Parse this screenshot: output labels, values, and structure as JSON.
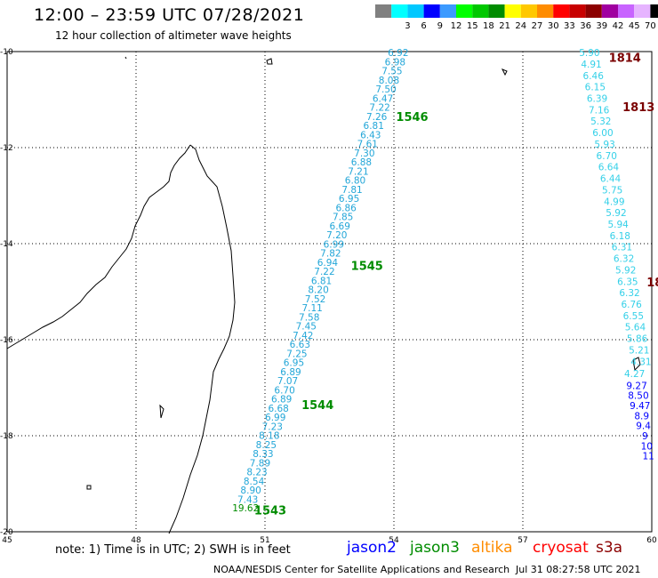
{
  "title": "12:00 – 23:59 UTC 07/28/2021",
  "subtitle": "12 hour collection of altimeter wave heights",
  "legend": {
    "unit": "(ft)",
    "bins": [
      {
        "label": "",
        "color": "#808080"
      },
      {
        "label": "3",
        "color": "#00ffff"
      },
      {
        "label": "6",
        "color": "#00c8ff"
      },
      {
        "label": "9",
        "color": "#0000ff"
      },
      {
        "label": "12",
        "color": "#3c9aff"
      },
      {
        "label": "15",
        "color": "#00ff00"
      },
      {
        "label": "18",
        "color": "#00c800"
      },
      {
        "label": "21",
        "color": "#008c00"
      },
      {
        "label": "24",
        "color": "#ffff00"
      },
      {
        "label": "27",
        "color": "#ffc800"
      },
      {
        "label": "30",
        "color": "#ff8c00"
      },
      {
        "label": "33",
        "color": "#ff0000"
      },
      {
        "label": "36",
        "color": "#c80000"
      },
      {
        "label": "39",
        "color": "#8c0000"
      },
      {
        "label": "42",
        "color": "#a000a0"
      },
      {
        "label": "45",
        "color": "#c864ff"
      },
      {
        "label": "70",
        "color": "#e6b4ff"
      },
      {
        "label": "",
        "color": "#000000"
      }
    ]
  },
  "axes": {
    "lon_min": 45,
    "lon_max": 60,
    "lat_min": -20,
    "lat_max": -10,
    "x_ticks": [
      "45",
      "48",
      "51",
      "54",
      "57",
      "60"
    ],
    "y_ticks": [
      "-10",
      "-12",
      "-14",
      "-16",
      "-18",
      "-20"
    ],
    "grid": true
  },
  "tracks": [
    {
      "color": "#22a6d8",
      "values": [
        "6.92",
        "6.98",
        "7.55",
        "8.08",
        "7.50",
        "6.47",
        "7.22",
        "7.26",
        "6.81",
        "6.43",
        "7.61",
        "7.30",
        "6.88",
        "7.21",
        "6.80",
        "7.81",
        "6.95",
        "6.86",
        "7.85",
        "6.69",
        "7.20",
        "6.99",
        "7.82",
        "6.94",
        "7.22",
        "6.81",
        "8.20",
        "7.52",
        "7.11",
        "7.58",
        "7.45",
        "7.42",
        "6.63",
        "7.25",
        "6.95",
        "6.89",
        "7.07",
        "6.70",
        "6.89",
        "6.68",
        "6.99",
        "7.23",
        "8.18",
        "8.25",
        "8.33",
        "7.89",
        "8.23",
        "8.54",
        "8.90",
        "7.43"
      ],
      "start": {
        "lon": 54.1,
        "lat": -10.02
      },
      "end": {
        "lon": 50.6,
        "lat": -19.32
      }
    },
    {
      "color": "#34d0e8",
      "values": [
        "5.90",
        "4.91",
        "6.46",
        "6.15",
        "6.39",
        "7.16",
        "5.32",
        "6.00",
        "5.93",
        "6.70",
        "6.64",
        "6.44",
        "5.75",
        "4.99",
        "5.92",
        "5.94",
        "6.18",
        "6.31",
        "6.32",
        "5.92",
        "6.35",
        "6.32",
        "6.76",
        "6.55",
        "5.64",
        "5.86",
        "5.21",
        "4.31"
      ],
      "start": {
        "lon": 58.55,
        "lat": -10.02
      },
      "end": {
        "lon": 59.75,
        "lat": -16.45
      }
    },
    {
      "color": "#0000ff",
      "values": [
        "9.27",
        "8.50",
        "9.47",
        "8.9",
        "9.4",
        "9",
        "10",
        "11"
      ],
      "start": {
        "lon": 59.65,
        "lat": -16.95
      },
      "end": {
        "lon": 59.92,
        "lat": -18.42
      }
    }
  ],
  "extra_values": [
    {
      "text": "19.62",
      "color": "#008c00",
      "lon": 50.55,
      "lat": -19.5
    },
    {
      "text": "4.27",
      "color": "#34d0e8",
      "lon": 59.6,
      "lat": -16.7
    }
  ],
  "pass_labels": [
    {
      "text": "1546",
      "color": "#008c00",
      "lon": 54.05,
      "lat": -11.35
    },
    {
      "text": "1545",
      "color": "#008c00",
      "lon": 53.0,
      "lat": -14.45
    },
    {
      "text": "1544",
      "color": "#008c00",
      "lon": 51.85,
      "lat": -17.35
    },
    {
      "text": "1543",
      "color": "#008c00",
      "lon": 50.75,
      "lat": -19.55
    },
    {
      "text": "1814",
      "color": "#7a0000",
      "lon": 59.0,
      "lat": -10.12
    },
    {
      "text": "1813",
      "color": "#7a0000",
      "lon": 59.32,
      "lat": -11.15
    },
    {
      "text": "18",
      "color": "#7a0000",
      "lon": 59.88,
      "lat": -14.8
    }
  ],
  "footer": {
    "note": "note:  1) Time is in UTC;  2) SWH is in feet",
    "missions": [
      {
        "name": "jason2",
        "color": "#0000ff"
      },
      {
        "name": "jason3",
        "color": "#008c00"
      },
      {
        "name": "altika",
        "color": "#ff8c00"
      },
      {
        "name": "cryosat",
        "color": "#ff0000"
      },
      {
        "name": "s3a",
        "color": "#8c0000"
      }
    ],
    "credit": "NOAA/NESDIS Center for Satellite Applications and Research",
    "timestamp": "Jul 31 08:27:58 UTC 2021"
  }
}
